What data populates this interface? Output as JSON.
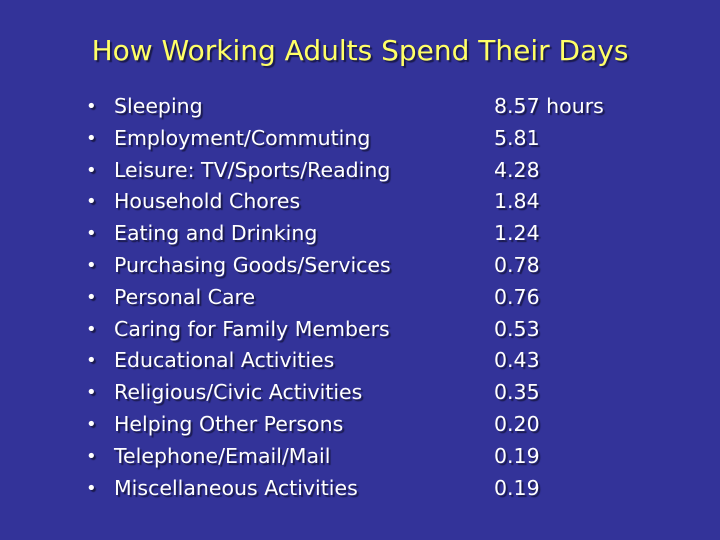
{
  "slide": {
    "title": "How Working Adults Spend Their Days",
    "bullet": "•",
    "items": [
      {
        "label": "Sleeping",
        "value": "8.57 hours"
      },
      {
        "label": "Employment/Commuting",
        "value": "5.81"
      },
      {
        "label": "Leisure: TV/Sports/Reading",
        "value": "4.28"
      },
      {
        "label": "Household Chores",
        "value": "1.84"
      },
      {
        "label": "Eating and Drinking",
        "value": "1.24"
      },
      {
        "label": "Purchasing Goods/Services",
        "value": "0.78"
      },
      {
        "label": "Personal Care",
        "value": "0.76"
      },
      {
        "label": "Caring for Family Members",
        "value": "0.53"
      },
      {
        "label": "Educational Activities",
        "value": "0.43"
      },
      {
        "label": "Religious/Civic Activities",
        "value": "0.35"
      },
      {
        "label": "Helping Other Persons",
        "value": "0.20"
      },
      {
        "label": "Telephone/Email/Mail",
        "value": "0.19"
      },
      {
        "label": "Miscellaneous Activities",
        "value": "0.19"
      }
    ]
  },
  "colors": {
    "background": "#333399",
    "title": "#ffff66",
    "text": "#ffffff"
  }
}
